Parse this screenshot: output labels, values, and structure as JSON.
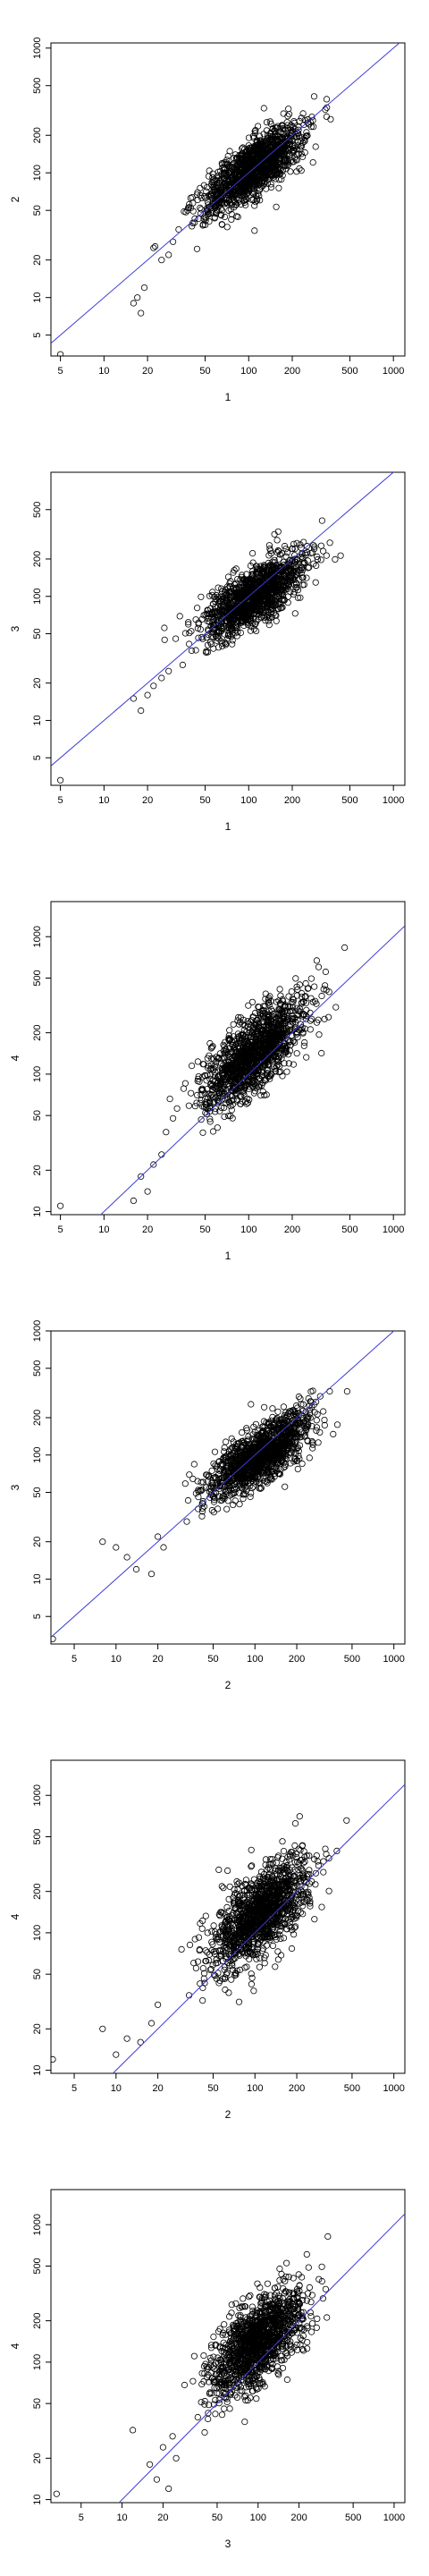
{
  "chart_data": [
    {
      "type": "scatter",
      "x_label": "1",
      "y_label": "2",
      "log_x": true,
      "log_y": true,
      "xlim": [
        4.3,
        1200
      ],
      "ylim": [
        3.4,
        1100
      ],
      "x_ticks": [
        5,
        10,
        20,
        50,
        100,
        200,
        500,
        1000
      ],
      "y_ticks": [
        5,
        10,
        20,
        50,
        100,
        200,
        500,
        1000
      ],
      "fit_line": {
        "color": "#3b3bd6",
        "slope": 1.0,
        "intercept_log10": 0.0
      },
      "cloud": {
        "center": [
          110,
          110
        ],
        "spread_major": 0.42,
        "spread_minor": 0.085,
        "angle_deg": 45
      },
      "outliers": [
        [
          5,
          3.5
        ],
        [
          16,
          9
        ],
        [
          17,
          10
        ],
        [
          18,
          7.5
        ],
        [
          19,
          12
        ],
        [
          22,
          25
        ],
        [
          25,
          20
        ],
        [
          28,
          22
        ],
        [
          30,
          28
        ]
      ]
    },
    {
      "type": "scatter",
      "x_label": "1",
      "y_label": "3",
      "log_x": true,
      "log_y": true,
      "xlim": [
        4.3,
        1200
      ],
      "ylim": [
        3.0,
        1000
      ],
      "x_ticks": [
        5,
        10,
        20,
        50,
        100,
        200,
        500,
        1000
      ],
      "y_ticks": [
        5,
        10,
        20,
        50,
        100,
        200,
        500
      ],
      "fit_line": {
        "color": "#3b3bd6",
        "slope": 1.0,
        "intercept_log10": 0.0
      },
      "cloud": {
        "center": [
          110,
          100
        ],
        "spread_major": 0.42,
        "spread_minor": 0.09,
        "angle_deg": 43
      },
      "outliers": [
        [
          5,
          3.3
        ],
        [
          16,
          15
        ],
        [
          18,
          12
        ],
        [
          20,
          16
        ],
        [
          22,
          19
        ],
        [
          25,
          22
        ],
        [
          28,
          25
        ]
      ]
    },
    {
      "type": "scatter",
      "x_label": "1",
      "y_label": "4",
      "log_x": true,
      "log_y": true,
      "xlim": [
        4.3,
        1200
      ],
      "ylim": [
        9.5,
        1800
      ],
      "x_ticks": [
        5,
        10,
        20,
        50,
        100,
        200,
        500,
        1000
      ],
      "y_ticks": [
        10,
        20,
        50,
        100,
        200,
        500,
        1000
      ],
      "fit_line": {
        "color": "#3b3bd6",
        "slope": 1.0,
        "intercept_log10": 0.0
      },
      "cloud": {
        "center": [
          110,
          140
        ],
        "spread_major": 0.44,
        "spread_minor": 0.1,
        "angle_deg": 50
      },
      "outliers": [
        [
          5,
          11
        ],
        [
          16,
          12
        ],
        [
          18,
          18
        ],
        [
          20,
          14
        ],
        [
          22,
          22
        ],
        [
          25,
          26
        ]
      ]
    },
    {
      "type": "scatter",
      "x_label": "2",
      "y_label": "3",
      "log_x": true,
      "log_y": true,
      "xlim": [
        3.4,
        1200
      ],
      "ylim": [
        3.0,
        1000
      ],
      "x_ticks": [
        5,
        10,
        20,
        50,
        100,
        200,
        500,
        1000
      ],
      "y_ticks": [
        5,
        10,
        20,
        50,
        100,
        200,
        500,
        1000
      ],
      "fit_line": {
        "color": "#3b3bd6",
        "slope": 1.0,
        "intercept_log10": 0.0
      },
      "cloud": {
        "center": [
          110,
          100
        ],
        "spread_major": 0.42,
        "spread_minor": 0.09,
        "angle_deg": 42
      },
      "outliers": [
        [
          3.5,
          3.3
        ],
        [
          8,
          20
        ],
        [
          10,
          18
        ],
        [
          12,
          15
        ],
        [
          14,
          12
        ],
        [
          18,
          11
        ],
        [
          20,
          22
        ],
        [
          22,
          18
        ]
      ]
    },
    {
      "type": "scatter",
      "x_label": "2",
      "y_label": "4",
      "log_x": true,
      "log_y": true,
      "xlim": [
        3.4,
        1200
      ],
      "ylim": [
        9.5,
        1800
      ],
      "x_ticks": [
        5,
        10,
        20,
        50,
        100,
        200,
        500,
        1000
      ],
      "y_ticks": [
        10,
        20,
        50,
        100,
        200,
        500,
        1000
      ],
      "fit_line": {
        "color": "#3b3bd6",
        "slope": 1.0,
        "intercept_log10": 0.0
      },
      "cloud": {
        "center": [
          110,
          140
        ],
        "spread_major": 0.44,
        "spread_minor": 0.11,
        "angle_deg": 50
      },
      "outliers": [
        [
          3.5,
          12
        ],
        [
          8,
          20
        ],
        [
          10,
          13
        ],
        [
          12,
          17
        ],
        [
          15,
          16
        ],
        [
          18,
          22
        ],
        [
          20,
          30
        ]
      ]
    },
    {
      "type": "scatter",
      "x_label": "3",
      "y_label": "4",
      "log_x": true,
      "log_y": true,
      "xlim": [
        3.0,
        1200
      ],
      "ylim": [
        9.5,
        1800
      ],
      "x_ticks": [
        5,
        10,
        20,
        50,
        100,
        200,
        500,
        1000
      ],
      "y_ticks": [
        10,
        20,
        50,
        100,
        200,
        500,
        1000
      ],
      "fit_line": {
        "color": "#3b3bd6",
        "slope": 1.0,
        "intercept_log10": 0.0
      },
      "cloud": {
        "center": [
          100,
          140
        ],
        "spread_major": 0.44,
        "spread_minor": 0.11,
        "angle_deg": 52
      },
      "outliers": [
        [
          3.3,
          11
        ],
        [
          12,
          32
        ],
        [
          16,
          18
        ],
        [
          18,
          14
        ],
        [
          20,
          24
        ],
        [
          22,
          12
        ],
        [
          25,
          20
        ]
      ]
    }
  ]
}
